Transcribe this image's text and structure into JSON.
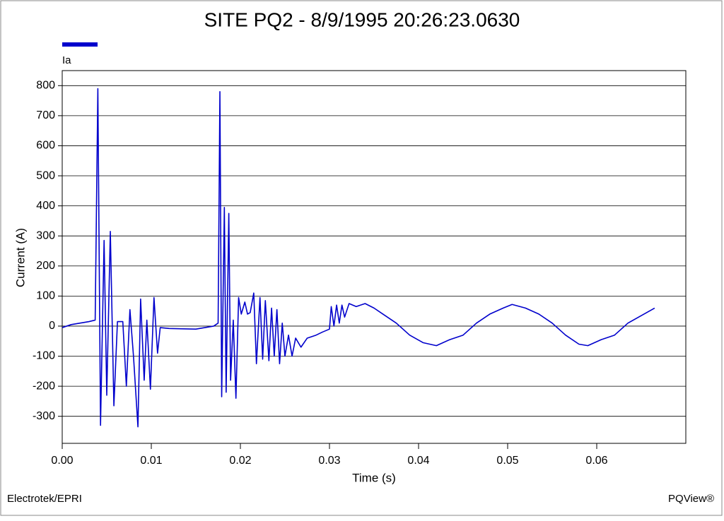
{
  "chart_data": {
    "type": "line",
    "title": "SITE PQ2 - 8/9/1995 20:26:23.0630",
    "x_label": "Time (s)",
    "y_label": "Current (A)",
    "footer_left": "Electrotek/EPRI",
    "footer_right": "PQView®",
    "xlim": [
      0,
      0.07
    ],
    "xticks": [
      {
        "value": 0,
        "label": "0.00"
      },
      {
        "value": 0.01,
        "label": "0.01"
      },
      {
        "value": 0.02,
        "label": "0.02"
      },
      {
        "value": 0.03,
        "label": "0.03"
      },
      {
        "value": 0.04,
        "label": "0.04"
      },
      {
        "value": 0.05,
        "label": "0.05"
      },
      {
        "value": 0.06,
        "label": "0.06"
      }
    ],
    "ylim": [
      -390,
      850
    ],
    "yticks": [
      -300,
      -200,
      -100,
      0,
      100,
      200,
      300,
      400,
      500,
      600,
      700,
      800
    ],
    "grid": true,
    "legend": "top-left",
    "x": [
      0,
      0.001,
      0.003,
      0.0037,
      0.004,
      0.0043,
      0.0047,
      0.005,
      0.0054,
      0.0058,
      0.0062,
      0.0068,
      0.0072,
      0.0076,
      0.008,
      0.0085,
      0.0088,
      0.0092,
      0.0095,
      0.0099,
      0.0103,
      0.0107,
      0.011,
      0.012,
      0.015,
      0.017,
      0.0175,
      0.0177,
      0.0179,
      0.0182,
      0.0184,
      0.0187,
      0.0189,
      0.0192,
      0.0195,
      0.0198,
      0.0201,
      0.0205,
      0.0208,
      0.0211,
      0.0215,
      0.0218,
      0.0222,
      0.0225,
      0.0228,
      0.0232,
      0.0235,
      0.0238,
      0.0241,
      0.0244,
      0.0247,
      0.025,
      0.0254,
      0.0258,
      0.0262,
      0.0268,
      0.0275,
      0.0285,
      0.0292,
      0.03,
      0.0302,
      0.0305,
      0.0308,
      0.0311,
      0.0314,
      0.0317,
      0.0322,
      0.033,
      0.034,
      0.035,
      0.036,
      0.0375,
      0.039,
      0.0405,
      0.042,
      0.0435,
      0.045,
      0.0465,
      0.048,
      0.0495,
      0.0505,
      0.052,
      0.0535,
      0.055,
      0.0565,
      0.058,
      0.059,
      0.0605,
      0.062,
      0.0635,
      0.065,
      0.0665
    ],
    "series": [
      {
        "name": "Ia",
        "color": "#0000cc",
        "values": [
          -5,
          5,
          15,
          20,
          790,
          -330,
          285,
          -230,
          315,
          -265,
          15,
          15,
          -200,
          55,
          -100,
          -335,
          90,
          -180,
          20,
          -210,
          95,
          -90,
          -5,
          -8,
          -10,
          0,
          10,
          780,
          -235,
          395,
          -220,
          375,
          -180,
          20,
          -240,
          95,
          40,
          80,
          40,
          45,
          110,
          -125,
          95,
          -110,
          85,
          -115,
          60,
          -100,
          55,
          -125,
          10,
          -100,
          -30,
          -100,
          -40,
          -70,
          -40,
          -30,
          -20,
          -10,
          65,
          0,
          70,
          10,
          70,
          30,
          75,
          65,
          75,
          60,
          40,
          10,
          -30,
          -55,
          -65,
          -45,
          -30,
          10,
          40,
          60,
          72,
          60,
          40,
          10,
          -30,
          -60,
          -65,
          -45,
          -30,
          10,
          35,
          60
        ]
      }
    ]
  }
}
